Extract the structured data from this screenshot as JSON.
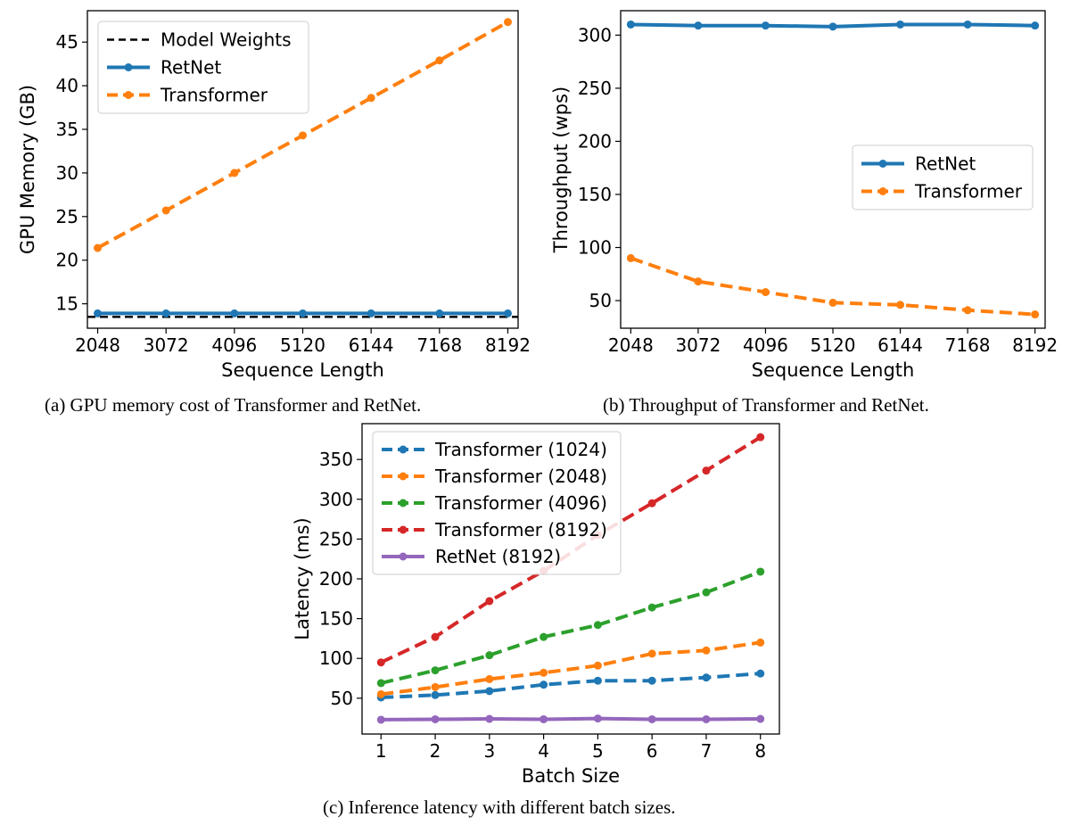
{
  "captions": {
    "a": "(a) GPU memory cost of Transformer and RetNet.",
    "b": "(b) Throughput of Transformer and RetNet.",
    "c": "(c) Inference latency with different batch sizes."
  },
  "colors": {
    "blue": "#1f77b4",
    "orange": "#ff7f0e",
    "green": "#2ca02c",
    "red": "#d62728",
    "purple": "#9467bd",
    "black": "#000000"
  },
  "chart_data": [
    {
      "id": "a",
      "type": "line",
      "xlabel": "Sequence Length",
      "ylabel": "GPU Memory (GB)",
      "x": [
        2048,
        3072,
        4096,
        5120,
        6144,
        7168,
        8192
      ],
      "xticks": [
        "2048",
        "3072",
        "4096",
        "5120",
        "6144",
        "7168",
        "8192"
      ],
      "yticks": [
        15,
        20,
        25,
        30,
        35,
        40,
        45
      ],
      "xlim": [
        1894,
        8346
      ],
      "ylim": [
        12.2,
        48.6
      ],
      "legend_location": "upper left",
      "series": [
        {
          "name": "Transformer",
          "color": "orange",
          "style": "dashed",
          "marker": true,
          "values": [
            21.4,
            25.7,
            30.0,
            34.3,
            38.6,
            42.9,
            47.3
          ]
        },
        {
          "name": "RetNet",
          "color": "blue",
          "style": "solid",
          "marker": true,
          "values": [
            13.9,
            13.9,
            13.9,
            13.9,
            13.9,
            13.9,
            13.9
          ]
        }
      ],
      "hlines": [
        {
          "name": "Model Weights",
          "color": "black",
          "style": "dashed",
          "value": 13.5
        }
      ],
      "legend": [
        {
          "label": "Model Weights",
          "color": "black",
          "style": "dashed",
          "marker": false
        },
        {
          "label": "RetNet",
          "color": "blue",
          "style": "solid",
          "marker": true
        },
        {
          "label": "Transformer",
          "color": "orange",
          "style": "dashed",
          "marker": true
        }
      ]
    },
    {
      "id": "b",
      "type": "line",
      "xlabel": "Sequence Length",
      "ylabel": "Throughput (wps)",
      "x": [
        2048,
        3072,
        4096,
        5120,
        6144,
        7168,
        8192
      ],
      "xticks": [
        "2048",
        "3072",
        "4096",
        "5120",
        "6144",
        "7168",
        "8192"
      ],
      "yticks": [
        50,
        100,
        150,
        200,
        250,
        300
      ],
      "xlim": [
        1894,
        8346
      ],
      "ylim": [
        24,
        323
      ],
      "legend_location": "center right",
      "series": [
        {
          "name": "RetNet",
          "color": "blue",
          "style": "solid",
          "marker": true,
          "values": [
            310,
            309,
            309,
            308,
            310,
            310,
            309
          ]
        },
        {
          "name": "Transformer",
          "color": "orange",
          "style": "dashed",
          "marker": true,
          "values": [
            90,
            68,
            58,
            48,
            46,
            41,
            37
          ]
        }
      ],
      "legend": [
        {
          "label": "RetNet",
          "color": "blue",
          "style": "solid",
          "marker": true
        },
        {
          "label": "Transformer",
          "color": "orange",
          "style": "dashed",
          "marker": true
        }
      ]
    },
    {
      "id": "c",
      "type": "line",
      "xlabel": "Batch Size",
      "ylabel": "Latency (ms)",
      "x": [
        1,
        2,
        3,
        4,
        5,
        6,
        7,
        8
      ],
      "xticks": [
        "1",
        "2",
        "3",
        "4",
        "5",
        "6",
        "7",
        "8"
      ],
      "yticks": [
        50,
        100,
        150,
        200,
        250,
        300,
        350
      ],
      "xlim": [
        0.65,
        8.35
      ],
      "ylim": [
        5,
        395
      ],
      "legend_location": "upper left",
      "series": [
        {
          "name": "Transformer (1024)",
          "color": "blue",
          "style": "dashed",
          "marker": true,
          "values": [
            51,
            54,
            59,
            67,
            72,
            72,
            76,
            81
          ]
        },
        {
          "name": "Transformer (2048)",
          "color": "orange",
          "style": "dashed",
          "marker": true,
          "values": [
            55,
            64,
            74,
            82,
            91,
            106,
            110,
            120
          ]
        },
        {
          "name": "Transformer (4096)",
          "color": "green",
          "style": "dashed",
          "marker": true,
          "values": [
            69,
            85,
            104,
            127,
            142,
            164,
            183,
            209
          ]
        },
        {
          "name": "Transformer (8192)",
          "color": "red",
          "style": "dashed",
          "marker": true,
          "values": [
            95,
            127,
            172,
            210,
            255,
            295,
            336,
            378
          ]
        },
        {
          "name": "RetNet (8192)",
          "color": "purple",
          "style": "solid",
          "marker": true,
          "values": [
            23,
            23.5,
            24,
            23.5,
            24.5,
            23.5,
            23.5,
            24
          ]
        }
      ],
      "legend": [
        {
          "label": "Transformer (1024)",
          "color": "blue",
          "style": "dashed",
          "marker": true
        },
        {
          "label": "Transformer (2048)",
          "color": "orange",
          "style": "dashed",
          "marker": true
        },
        {
          "label": "Transformer (4096)",
          "color": "green",
          "style": "dashed",
          "marker": true
        },
        {
          "label": "Transformer (8192)",
          "color": "red",
          "style": "dashed",
          "marker": true
        },
        {
          "label": "RetNet (8192)",
          "color": "purple",
          "style": "solid",
          "marker": true
        }
      ]
    }
  ]
}
